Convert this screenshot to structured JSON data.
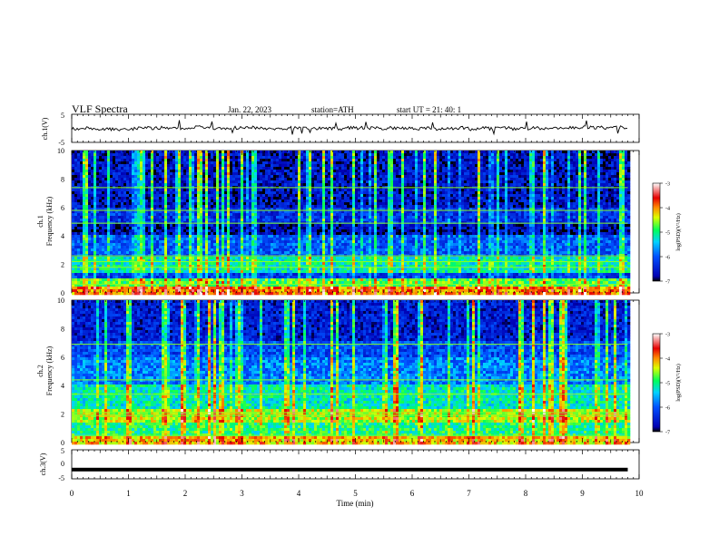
{
  "header": {
    "title": "VLF  Spectra",
    "date": "Jan. 22, 2023",
    "station": "station=ATH",
    "start_time": "start  UT  =   21: 40: 1"
  },
  "chart_data": [
    {
      "type": "line",
      "panel": "ch1-waveform",
      "ylabel": "ch.1(V)",
      "ylim": [
        -5,
        5
      ],
      "y_ticks": [
        "5",
        "-5"
      ],
      "xlim": [
        0,
        10
      ],
      "series": [
        {
          "approx_level_V": 0.0,
          "approx_noise_amplitude_V": 1.2
        }
      ]
    },
    {
      "type": "heatmap",
      "panel": "ch1-spectrogram",
      "ylabel_line1": "ch.1",
      "ylabel_line2": "Frequency (kHz)",
      "ylim": [
        0,
        10
      ],
      "y_ticks": [
        "0",
        "2",
        "4",
        "6",
        "8",
        "10"
      ],
      "xlim": [
        0,
        10
      ],
      "data_end_min": 9.8,
      "colorbar": {
        "label": "log(PSD)(V²/Hz)",
        "range": [
          -7,
          -3
        ],
        "ticks": [
          "-3",
          "-4",
          "-5",
          "-6",
          "-7"
        ]
      },
      "features_log_psd": [
        {
          "band_kHz": [
            0.0,
            0.6
          ],
          "level": -4.0
        },
        {
          "band_kHz": [
            0.6,
            1.2
          ],
          "level": -4.8
        },
        {
          "band_kHz": [
            1.6,
            2.6
          ],
          "level": -5.2
        },
        {
          "band_kHz": [
            2.6,
            4.2
          ],
          "level": -6.0
        },
        {
          "band_kHz": [
            4.2,
            5.0
          ],
          "level": -6.7
        },
        {
          "band_kHz": [
            5.0,
            6.0
          ],
          "level": -6.3
        },
        {
          "band_kHz": [
            6.0,
            10.0
          ],
          "level": -6.6
        }
      ]
    },
    {
      "type": "heatmap",
      "panel": "ch2-spectrogram",
      "ylabel_line1": "ch.2",
      "ylabel_line2": "Frequency (kHz)",
      "ylim": [
        0,
        10
      ],
      "y_ticks": [
        "0",
        "2",
        "4",
        "6",
        "8",
        "10"
      ],
      "xlim": [
        0,
        10
      ],
      "data_end_min": 9.8,
      "colorbar": {
        "label": "log(PSD)(V²/Hz)",
        "range": [
          -7,
          -3
        ],
        "ticks": [
          "-3",
          "-4",
          "-5",
          "-6",
          "-7"
        ]
      },
      "features_log_psd": [
        {
          "band_kHz": [
            0.0,
            0.6
          ],
          "level": -4.2
        },
        {
          "band_kHz": [
            0.6,
            1.6
          ],
          "level": -5.0
        },
        {
          "band_kHz": [
            1.6,
            2.4
          ],
          "level": -4.5
        },
        {
          "band_kHz": [
            2.4,
            4.2
          ],
          "level": -5.2
        },
        {
          "band_kHz": [
            4.2,
            6.0
          ],
          "level": -5.8
        },
        {
          "band_kHz": [
            6.0,
            7.2
          ],
          "level": -6.1
        },
        {
          "band_kHz": [
            7.2,
            10.0
          ],
          "level": -6.5
        }
      ]
    },
    {
      "type": "line",
      "panel": "ch3-waveform",
      "ylabel": "ch.3(V)",
      "ylim": [
        -5,
        5
      ],
      "y_ticks": [
        "5",
        "0",
        "-5"
      ],
      "xlim": [
        0,
        10
      ],
      "series": [
        {
          "approx_level_V": -1.8
        }
      ]
    }
  ],
  "x_axis": {
    "label": "Time  (min)",
    "ticks": [
      "0",
      "1",
      "2",
      "3",
      "4",
      "5",
      "6",
      "7",
      "8",
      "9",
      "10"
    ]
  },
  "colors": {
    "colormap": [
      "#000000",
      "#0000b4",
      "#0050ff",
      "#00d2ff",
      "#00ff5a",
      "#dcff00",
      "#ff8c00",
      "#e60000",
      "#ffffff"
    ],
    "trace": "#000000",
    "axis": "#000000"
  }
}
